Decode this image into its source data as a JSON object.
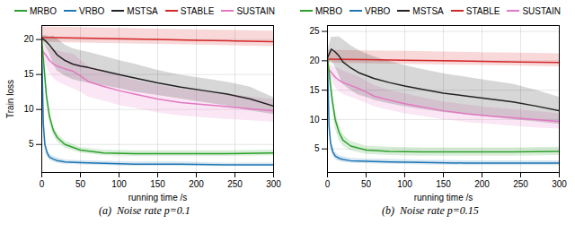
{
  "chart_data": [
    {
      "type": "line",
      "title": "(a)  Noise rate p=0.1",
      "xlabel": "running time /s",
      "ylabel": "Train loss",
      "xlim": [
        0,
        300
      ],
      "ylim": [
        1,
        22
      ],
      "xticks": [
        0,
        50,
        100,
        150,
        200,
        250,
        300
      ],
      "yticks": [
        5,
        10,
        15,
        20
      ],
      "grid": true,
      "legend": "upper right",
      "series": [
        {
          "name": "MRBO",
          "color": "#2ca02c",
          "x": [
            0,
            3,
            6,
            10,
            15,
            20,
            30,
            50,
            80,
            120,
            180,
            240,
            300
          ],
          "values": [
            20.0,
            16.0,
            12.0,
            9.0,
            7.0,
            6.0,
            5.0,
            4.2,
            3.8,
            3.7,
            3.7,
            3.7,
            3.8
          ],
          "y_low": [
            19.5,
            15.0,
            11.0,
            8.2,
            6.3,
            5.4,
            4.5,
            3.8,
            3.4,
            3.3,
            3.3,
            3.3,
            3.4
          ],
          "y_high": [
            20.5,
            17.0,
            13.0,
            9.8,
            7.7,
            6.6,
            5.5,
            4.6,
            4.2,
            4.1,
            4.1,
            4.1,
            4.2
          ]
        },
        {
          "name": "VRBO",
          "color": "#1f77b4",
          "x": [
            0,
            2,
            4,
            7,
            10,
            15,
            20,
            30,
            50,
            80,
            120,
            180,
            240,
            300
          ],
          "values": [
            19.0,
            8.0,
            5.0,
            3.8,
            3.2,
            2.9,
            2.7,
            2.5,
            2.4,
            2.3,
            2.2,
            2.2,
            2.1,
            2.1
          ],
          "y_low": [
            18.0,
            7.0,
            4.2,
            3.2,
            2.8,
            2.5,
            2.3,
            2.2,
            2.1,
            2.0,
            1.9,
            1.9,
            1.85,
            1.85
          ],
          "y_high": [
            20.0,
            9.0,
            5.8,
            4.4,
            3.6,
            3.3,
            3.1,
            2.8,
            2.7,
            2.6,
            2.5,
            2.5,
            2.35,
            2.35
          ]
        },
        {
          "name": "MSTSA",
          "color": "#222222",
          "x": [
            0,
            5,
            10,
            15,
            20,
            30,
            40,
            50,
            60,
            80,
            100,
            120,
            150,
            180,
            210,
            240,
            270,
            300
          ],
          "values": [
            20.2,
            19.8,
            19.2,
            18.5,
            17.8,
            17.0,
            16.5,
            16.2,
            16.0,
            15.5,
            15.0,
            14.5,
            13.8,
            13.2,
            12.7,
            12.2,
            11.5,
            10.5
          ],
          "y_low": [
            19.8,
            19.0,
            18.0,
            16.5,
            15.5,
            14.8,
            14.3,
            14.0,
            13.8,
            13.4,
            13.0,
            12.5,
            12.0,
            11.5,
            11.0,
            10.5,
            9.8,
            9.3
          ],
          "y_high": [
            20.6,
            20.6,
            20.4,
            20.5,
            20.1,
            19.2,
            18.7,
            18.4,
            18.2,
            17.6,
            17.0,
            16.5,
            15.6,
            14.9,
            14.4,
            13.9,
            13.2,
            11.7
          ]
        },
        {
          "name": "STABLE",
          "color": "#d62728",
          "x": [
            0,
            50,
            100,
            150,
            200,
            250,
            300
          ],
          "values": [
            20.3,
            20.2,
            20.1,
            20.0,
            19.9,
            19.8,
            19.7
          ],
          "y_low": [
            19.6,
            19.5,
            19.4,
            19.3,
            19.2,
            19.1,
            19.0
          ],
          "y_high": [
            21.8,
            21.7,
            21.6,
            21.5,
            21.4,
            21.3,
            21.2
          ]
        },
        {
          "name": "SUSTAIN",
          "color": "#e377c2",
          "x": [
            0,
            5,
            10,
            15,
            20,
            30,
            40,
            50,
            60,
            80,
            100,
            120,
            150,
            180,
            210,
            240,
            270,
            300
          ],
          "values": [
            18.5,
            17.8,
            17.0,
            16.5,
            16.2,
            15.8,
            15.5,
            14.8,
            14.0,
            13.3,
            12.7,
            12.2,
            11.5,
            11.0,
            10.7,
            10.4,
            10.1,
            9.8
          ],
          "y_low": [
            17.8,
            16.5,
            15.2,
            14.5,
            14.0,
            13.5,
            13.0,
            12.5,
            11.8,
            11.2,
            10.6,
            10.2,
            9.5,
            9.1,
            8.8,
            8.6,
            8.4,
            8.2
          ],
          "y_high": [
            19.2,
            19.1,
            18.8,
            18.5,
            18.4,
            18.1,
            18.0,
            17.1,
            16.2,
            15.4,
            14.8,
            14.2,
            13.5,
            12.9,
            12.6,
            12.2,
            11.8,
            11.4
          ]
        }
      ]
    },
    {
      "type": "line",
      "title": "(b)  Noise rate p=0.15",
      "xlabel": "running time /s",
      "xlim": [
        0,
        300
      ],
      "ylim": [
        1,
        26
      ],
      "xticks": [
        0,
        50,
        100,
        150,
        200,
        250,
        300
      ],
      "yticks": [
        5,
        10,
        15,
        20,
        25
      ],
      "grid": true,
      "legend": "upper right",
      "series": [
        {
          "name": "MRBO",
          "color": "#2ca02c",
          "x": [
            0,
            3,
            6,
            10,
            15,
            20,
            30,
            50,
            80,
            120,
            180,
            240,
            300
          ],
          "values": [
            20.5,
            17.0,
            13.5,
            10.0,
            7.8,
            6.5,
            5.5,
            4.8,
            4.6,
            4.5,
            4.5,
            4.5,
            4.6
          ],
          "y_low": [
            19.5,
            15.5,
            12.0,
            8.5,
            6.5,
            5.5,
            4.7,
            4.1,
            3.9,
            3.8,
            3.8,
            3.8,
            3.9
          ],
          "y_high": [
            21.5,
            18.5,
            15.0,
            11.5,
            9.1,
            7.5,
            6.3,
            5.5,
            5.3,
            5.2,
            5.2,
            5.2,
            5.3
          ]
        },
        {
          "name": "VRBO",
          "color": "#1f77b4",
          "x": [
            0,
            2,
            4,
            7,
            10,
            15,
            20,
            30,
            50,
            80,
            120,
            180,
            240,
            300
          ],
          "values": [
            20.0,
            9.0,
            6.0,
            4.5,
            3.8,
            3.4,
            3.2,
            3.0,
            2.9,
            2.8,
            2.7,
            2.6,
            2.6,
            2.6
          ],
          "y_low": [
            19.0,
            8.0,
            5.0,
            3.8,
            3.2,
            2.9,
            2.7,
            2.6,
            2.5,
            2.4,
            2.3,
            2.2,
            2.2,
            2.2
          ],
          "y_high": [
            21.0,
            10.0,
            7.0,
            5.2,
            4.4,
            3.9,
            3.7,
            3.4,
            3.3,
            3.2,
            3.1,
            3.0,
            3.0,
            3.0
          ]
        },
        {
          "name": "MSTSA",
          "color": "#222222",
          "x": [
            0,
            5,
            10,
            15,
            20,
            30,
            40,
            50,
            60,
            80,
            100,
            120,
            150,
            180,
            210,
            240,
            270,
            300
          ],
          "values": [
            20.5,
            22.0,
            21.5,
            20.8,
            19.8,
            18.8,
            18.0,
            17.5,
            17.0,
            16.3,
            15.7,
            15.2,
            14.5,
            14.0,
            13.5,
            13.0,
            12.3,
            11.5
          ],
          "y_low": [
            19.5,
            20.0,
            19.0,
            17.5,
            16.0,
            15.0,
            14.2,
            13.8,
            13.3,
            12.7,
            12.2,
            11.8,
            11.2,
            10.8,
            10.4,
            10.0,
            9.6,
            9.2
          ],
          "y_high": [
            21.5,
            24.0,
            24.0,
            24.1,
            23.6,
            22.6,
            21.8,
            21.2,
            20.7,
            19.9,
            19.2,
            18.6,
            17.8,
            17.2,
            16.6,
            16.0,
            15.0,
            13.8
          ]
        },
        {
          "name": "STABLE",
          "color": "#d62728",
          "x": [
            0,
            50,
            100,
            150,
            200,
            250,
            300
          ],
          "values": [
            20.3,
            20.2,
            20.1,
            20.0,
            19.9,
            19.8,
            19.7
          ],
          "y_low": [
            19.6,
            19.5,
            19.4,
            19.3,
            19.2,
            19.1,
            19.0
          ],
          "y_high": [
            21.8,
            21.7,
            21.6,
            21.5,
            21.4,
            21.3,
            21.2
          ]
        },
        {
          "name": "SUSTAIN",
          "color": "#e377c2",
          "x": [
            0,
            5,
            10,
            15,
            20,
            30,
            40,
            50,
            60,
            80,
            100,
            120,
            150,
            180,
            210,
            240,
            270,
            300
          ],
          "values": [
            18.8,
            18.0,
            17.2,
            16.7,
            16.3,
            15.8,
            15.3,
            14.7,
            14.0,
            13.3,
            12.7,
            12.2,
            11.5,
            11.0,
            10.6,
            10.3,
            10.0,
            9.7
          ],
          "y_low": [
            18.0,
            16.8,
            15.5,
            14.8,
            14.3,
            13.8,
            13.3,
            12.8,
            12.2,
            11.6,
            11.0,
            10.6,
            10.0,
            9.5,
            9.2,
            8.9,
            8.6,
            8.4
          ],
          "y_high": [
            19.6,
            19.2,
            18.9,
            18.6,
            18.3,
            17.8,
            17.3,
            16.6,
            15.8,
            15.0,
            14.4,
            13.8,
            13.0,
            12.5,
            12.0,
            11.7,
            11.4,
            11.0
          ]
        }
      ]
    }
  ]
}
